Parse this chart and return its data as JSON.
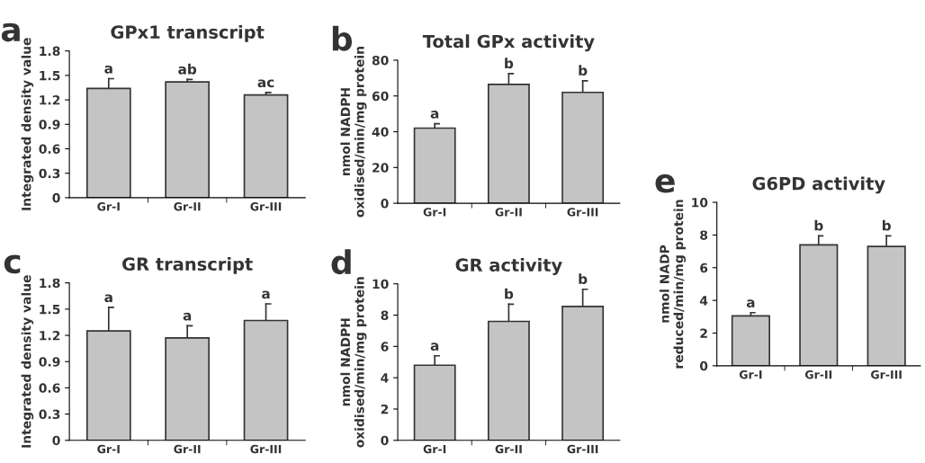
{
  "chart_data": [
    {
      "type": "bar",
      "title": "GPx1 transcript",
      "ylabel": "Integrated density value",
      "categories": [
        "Gr-I",
        "Gr-II",
        "Gr-III"
      ],
      "values": [
        1.34,
        1.42,
        1.26
      ],
      "errors": [
        [
          1.34,
          1.46
        ],
        [
          1.42,
          1.45
        ],
        [
          1.26,
          1.29
        ]
      ],
      "color": "#c4c4c4",
      "ylim": [
        0,
        1.8
      ],
      "yticks": [
        0,
        0.3,
        0.6,
        0.9,
        1.2,
        1.5,
        1.8
      ],
      "annotations": [
        "a",
        {
          "text": "a",
          "x": "Gr-I",
          "y": 1.46
        },
        {
          "text": "ab",
          "x": "Gr-II",
          "y": 1.45
        },
        {
          "text": "ac",
          "x": "Gr-III",
          "y": 1.29
        }
      ]
    },
    {
      "type": "bar",
      "title": "Total GPx activity",
      "ylabel": "nmol NADPH\noxidised/min/mg protein",
      "categories": [
        "Gr-I",
        "Gr-II",
        "Gr-III"
      ],
      "values": [
        42,
        66.5,
        62
      ],
      "errors": [
        [
          42,
          44.5
        ],
        [
          66.5,
          72.5
        ],
        [
          62,
          68.5
        ]
      ],
      "color": "#c4c4c4",
      "ylim": [
        0,
        80
      ],
      "yticks": [
        0,
        20,
        40,
        60,
        80
      ],
      "annotations": [
        "b",
        {
          "text": "a",
          "x": "Gr-I",
          "y": 44.5
        },
        {
          "text": "b",
          "x": "Gr-II",
          "y": 72.5
        },
        {
          "text": "b",
          "x": "Gr-III",
          "y": 68.5
        }
      ]
    },
    {
      "type": "bar",
      "title": "GR transcript",
      "ylabel": "Integrated density value",
      "categories": [
        "Gr-I",
        "Gr-II",
        "Gr-III"
      ],
      "values": [
        1.25,
        1.17,
        1.37
      ],
      "errors": [
        [
          1.25,
          1.52
        ],
        [
          1.17,
          1.31
        ],
        [
          1.37,
          1.56
        ]
      ],
      "color": "#c4c4c4",
      "ylim": [
        0,
        1.8
      ],
      "yticks": [
        0,
        0.3,
        0.6,
        0.9,
        1.2,
        1.5,
        1.8
      ],
      "annotations": [
        "c",
        {
          "text": "a",
          "x": "Gr-I",
          "y": 1.52
        },
        {
          "text": "a",
          "x": "Gr-II",
          "y": 1.31
        },
        {
          "text": "a",
          "x": "Gr-III",
          "y": 1.56
        }
      ]
    },
    {
      "type": "bar",
      "title": "GR activity",
      "ylabel": "nmol NADPH\noxidised/min/mg protein",
      "categories": [
        "Gr-I",
        "Gr-II",
        "Gr-III"
      ],
      "values": [
        4.8,
        7.6,
        8.55
      ],
      "errors": [
        [
          4.8,
          5.4
        ],
        [
          7.6,
          8.7
        ],
        [
          8.55,
          9.65
        ]
      ],
      "color": "#c4c4c4",
      "ylim": [
        0,
        10
      ],
      "yticks": [
        0,
        2,
        4,
        6,
        8,
        10
      ],
      "annotations": [
        "d",
        {
          "text": "a",
          "x": "Gr-I",
          "y": 5.4
        },
        {
          "text": "b",
          "x": "Gr-II",
          "y": 8.7
        },
        {
          "text": "b",
          "x": "Gr-III",
          "y": 9.65
        }
      ]
    },
    {
      "type": "bar",
      "title": "G6PD activity",
      "ylabel": "nmol NADP\nreduced/min/mg protein",
      "categories": [
        "Gr-I",
        "Gr-II",
        "Gr-III"
      ],
      "values": [
        3.05,
        7.4,
        7.3
      ],
      "errors": [
        [
          3.05,
          3.25
        ],
        [
          7.4,
          7.95
        ],
        [
          7.3,
          7.95
        ]
      ],
      "color": "#c4c4c4",
      "ylim": [
        0,
        10
      ],
      "yticks": [
        0,
        2,
        4,
        6,
        8,
        10
      ],
      "annotations": [
        "e",
        {
          "text": "a",
          "x": "Gr-I",
          "y": 3.25
        },
        {
          "text": "b",
          "x": "Gr-II",
          "y": 7.95
        },
        {
          "text": "b",
          "x": "Gr-III",
          "y": 7.95
        }
      ]
    }
  ]
}
